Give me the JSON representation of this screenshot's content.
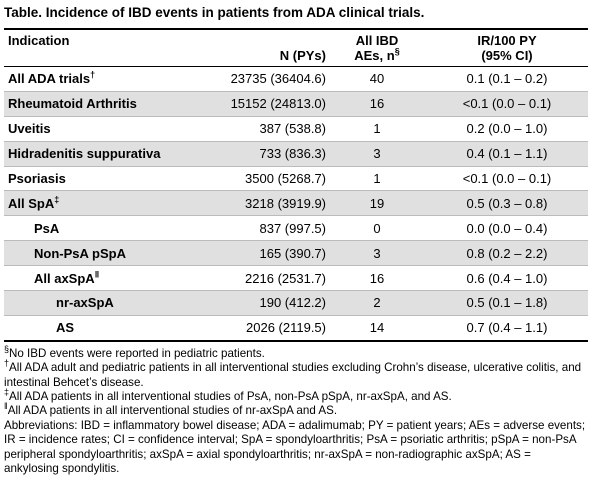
{
  "title": "Table. Incidence of IBD events in patients from ADA clinical trials.",
  "header": {
    "indication": "Indication",
    "n": "N (PYs)",
    "aes": "All IBD AEs, n",
    "aes_mark": "§",
    "ir": "IR/100 PY (95% CI)"
  },
  "rows": [
    {
      "indication": "All ADA trials",
      "mark": "†",
      "n": "23735 (36404.6)",
      "aes": "40",
      "ir": "0.1 (0.1 – 0.2)"
    },
    {
      "indication": "Rheumatoid Arthritis",
      "n": "15152 (24813.0)",
      "aes": "16",
      "ir": "<0.1 (0.0 – 0.1)"
    },
    {
      "indication": "Uveitis",
      "n": "387 (538.8)",
      "aes": "1",
      "ir": "0.2 (0.0 – 1.0)"
    },
    {
      "indication": "Hidradenitis suppurativa",
      "n": "733 (836.3)",
      "aes": "3",
      "ir": "0.4 (0.1 – 1.1)"
    },
    {
      "indication": "Psoriasis",
      "n": "3500 (5268.7)",
      "aes": "1",
      "ir": "<0.1 (0.0 – 0.1)"
    },
    {
      "indication": "All SpA",
      "mark": "‡",
      "n": "3218 (3919.9)",
      "aes": "19",
      "ir": "0.5 (0.3 – 0.8)"
    },
    {
      "indication": "PsA",
      "n": "837 (997.5)",
      "aes": "0",
      "ir": "0.0 (0.0 – 0.4)"
    },
    {
      "indication": "Non-PsA pSpA",
      "n": "165 (390.7)",
      "aes": "3",
      "ir": "0.8 (0.2 – 2.2)"
    },
    {
      "indication": "All axSpA",
      "mark": "‖",
      "n": "2216 (2531.7)",
      "aes": "16",
      "ir": "0.6 (0.4 – 1.0)"
    },
    {
      "indication": "nr-axSpA",
      "n": "190 (412.2)",
      "aes": "2",
      "ir": "0.5 (0.1 – 1.8)"
    },
    {
      "indication": "AS",
      "n": "2026 (2119.5)",
      "aes": "14",
      "ir": "0.7 (0.4 – 1.1)"
    }
  ],
  "footnotes": [
    {
      "mark": "§",
      "text": "No IBD events were reported in pediatric patients."
    },
    {
      "mark": "†",
      "text": "All ADA adult and pediatric patients in all interventional studies excluding Crohn’s disease, ulcerative colitis, and intestinal Behcet’s disease."
    },
    {
      "mark": "‡",
      "text": "All ADA patients in all interventional studies of PsA, non-PsA pSpA, nr-axSpA, and AS."
    },
    {
      "mark": "‖",
      "text": "All ADA patients in all interventional studies of nr-axSpA and AS."
    }
  ],
  "abbreviations": "Abbreviations: IBD = inflammatory bowel disease; ADA = adalimumab; PY = patient years; AEs = adverse events; IR = incidence rates; CI = confidence interval; SpA = spondyloarthritis; PsA = psoriatic arthritis; pSpA = non-PsA peripheral spondyloarthritis; axSpA = axial spondyloarthritis; nr-axSpA = non-radiographic axSpA; AS = ankylosing spondylitis."
}
